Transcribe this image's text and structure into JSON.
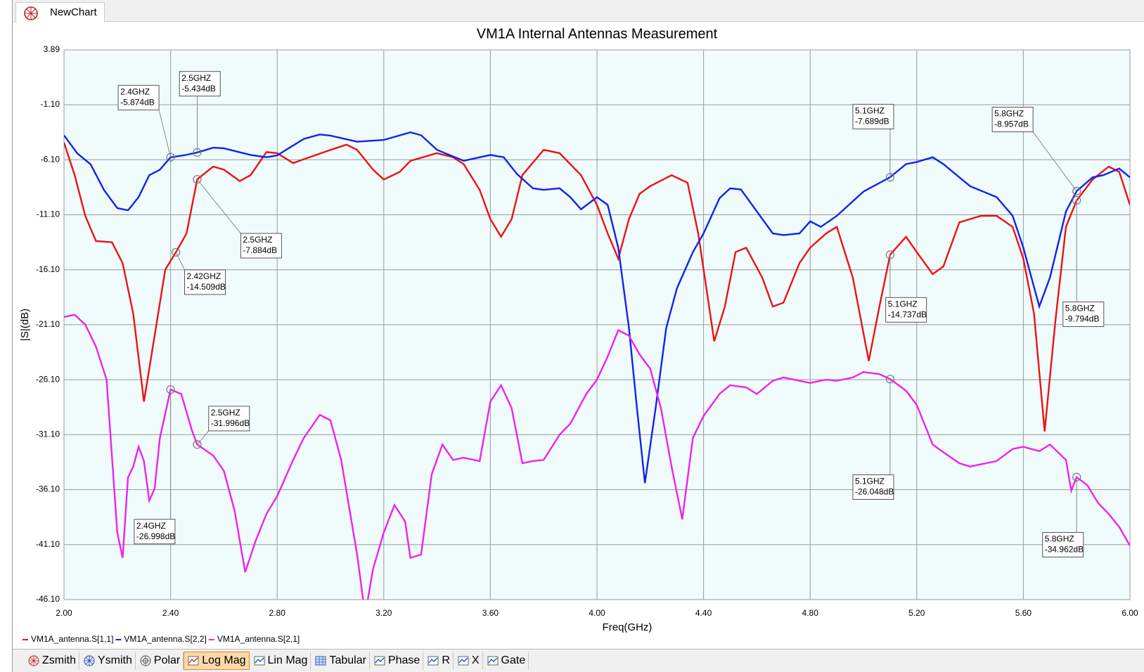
{
  "tab": "NewChart",
  "chart_data": {
    "type": "line",
    "title": "VM1A Internal Antennas Measurement",
    "xlabel": "Freq(GHz)",
    "ylabel": "|S|(dB)",
    "xlim": [
      2,
      6
    ],
    "ylim": [
      -46.1,
      3.89
    ],
    "xticks": [
      {
        "value": 2,
        "label": "2.00"
      },
      {
        "value": 2.4,
        "label": "2.40"
      },
      {
        "value": 2.8,
        "label": "2.80"
      },
      {
        "value": 3.2,
        "label": "3.20"
      },
      {
        "value": 3.6,
        "label": "3.60"
      },
      {
        "value": 4,
        "label": "4.00"
      },
      {
        "value": 4.4,
        "label": "4.40"
      },
      {
        "value": 4.8,
        "label": "4.80"
      },
      {
        "value": 5.2,
        "label": "5.20"
      },
      {
        "value": 5.6,
        "label": "5.60"
      },
      {
        "value": 6,
        "label": "6.00"
      }
    ],
    "yticks": [
      3.89,
      {
        "value": -1.1,
        "label": "-1.10"
      },
      {
        "value": -6.1,
        "label": "-6.10"
      },
      {
        "value": -11.1,
        "label": "-11.10"
      },
      {
        "value": -16.1,
        "label": "-16.10"
      },
      {
        "value": -21.1,
        "label": "-21.10"
      },
      {
        "value": -26.1,
        "label": "-26.10"
      },
      {
        "value": -31.1,
        "label": "-31.10"
      },
      {
        "value": -36.1,
        "label": "-36.10"
      },
      {
        "value": -41.1,
        "label": "-41.10"
      },
      {
        "value": -46.1,
        "label": "-46.10"
      }
    ],
    "grid": true,
    "series": [
      {
        "name": "VM1A_antenna.S[1,1]",
        "color": "#ee1111",
        "x": [
          2.0,
          2.04,
          2.08,
          2.12,
          2.18,
          2.22,
          2.26,
          2.3,
          2.34,
          2.38,
          2.42,
          2.46,
          2.5,
          2.56,
          2.6,
          2.66,
          2.7,
          2.76,
          2.8,
          2.86,
          2.9,
          3.0,
          3.06,
          3.1,
          3.16,
          3.2,
          3.26,
          3.3,
          3.4,
          3.46,
          3.5,
          3.56,
          3.6,
          3.64,
          3.68,
          3.72,
          3.8,
          3.86,
          3.94,
          4.0,
          4.04,
          4.08,
          4.12,
          4.16,
          4.2,
          4.28,
          4.34,
          4.38,
          4.44,
          4.48,
          4.52,
          4.56,
          4.62,
          4.66,
          4.7,
          4.76,
          4.8,
          4.86,
          4.9,
          4.96,
          5.02,
          5.06,
          5.1,
          5.16,
          5.2,
          5.26,
          5.3,
          5.36,
          5.44,
          5.5,
          5.56,
          5.6,
          5.64,
          5.68,
          5.72,
          5.76,
          5.8,
          5.86,
          5.92,
          5.96,
          6.0
        ],
        "values": [
          -4.53,
          -7.5,
          -11.2,
          -13.5,
          -13.6,
          -15.5,
          -20.1,
          -28.1,
          -22.1,
          -16.1,
          -14.509,
          -12.8,
          -7.884,
          -6.72,
          -7.0,
          -8.04,
          -7.5,
          -5.4,
          -5.5,
          -6.4,
          -6.05,
          -5.2,
          -4.73,
          -5.2,
          -7.0,
          -7.9,
          -7.2,
          -6.2,
          -5.5,
          -5.87,
          -6.5,
          -8.84,
          -11.5,
          -13.1,
          -11.5,
          -7.5,
          -5.2,
          -5.5,
          -7.5,
          -10.2,
          -12.8,
          -15.1,
          -11.5,
          -9.2,
          -8.5,
          -7.5,
          -8.2,
          -12.8,
          -22.6,
          -19.45,
          -14.5,
          -14.1,
          -16.8,
          -19.45,
          -19.1,
          -15.5,
          -14.1,
          -12.8,
          -12.2,
          -16.8,
          -24.4,
          -19.45,
          -14.737,
          -13.1,
          -14.5,
          -16.5,
          -15.8,
          -11.8,
          -11.2,
          -11.2,
          -12.2,
          -15.1,
          -20.1,
          -30.8,
          -20.8,
          -12.2,
          -9.794,
          -7.9,
          -6.72,
          -7.2,
          -10.2
        ]
      },
      {
        "name": "VM1A_antenna.S[2,2]",
        "color": "#1122ee",
        "x": [
          2.0,
          2.05,
          2.1,
          2.15,
          2.2,
          2.24,
          2.28,
          2.32,
          2.36,
          2.4,
          2.45,
          2.5,
          2.56,
          2.6,
          2.7,
          2.76,
          2.8,
          2.9,
          2.96,
          3.0,
          3.1,
          3.2,
          3.3,
          3.34,
          3.4,
          3.5,
          3.6,
          3.65,
          3.7,
          3.76,
          3.8,
          3.86,
          3.9,
          3.94,
          4.0,
          4.04,
          4.08,
          4.12,
          4.15,
          4.18,
          4.22,
          4.26,
          4.3,
          4.36,
          4.4,
          4.46,
          4.5,
          4.54,
          4.6,
          4.66,
          4.7,
          4.76,
          4.8,
          4.84,
          4.9,
          5.0,
          5.1,
          5.16,
          5.2,
          5.26,
          5.3,
          5.4,
          5.5,
          5.56,
          5.6,
          5.66,
          5.7,
          5.76,
          5.8,
          5.86,
          5.9,
          5.96,
          6.0
        ],
        "values": [
          -3.87,
          -5.52,
          -6.52,
          -8.84,
          -10.5,
          -10.7,
          -9.5,
          -7.5,
          -7.0,
          -5.874,
          -5.7,
          -5.434,
          -5.0,
          -5.06,
          -5.66,
          -5.87,
          -5.7,
          -4.2,
          -3.8,
          -3.9,
          -4.46,
          -4.3,
          -3.6,
          -3.87,
          -5.2,
          -6.2,
          -5.66,
          -5.87,
          -7.4,
          -8.7,
          -8.84,
          -8.7,
          -9.5,
          -10.6,
          -9.5,
          -10.2,
          -14.1,
          -21.4,
          -28.7,
          -35.5,
          -28.7,
          -21.4,
          -17.8,
          -14.5,
          -12.8,
          -9.6,
          -8.7,
          -8.8,
          -10.8,
          -12.8,
          -12.95,
          -12.8,
          -11.7,
          -12.2,
          -11.2,
          -9.0,
          -7.689,
          -6.5,
          -6.3,
          -5.87,
          -6.5,
          -8.5,
          -9.5,
          -11.2,
          -14.1,
          -19.45,
          -16.8,
          -10.8,
          -8.957,
          -7.7,
          -7.5,
          -6.9,
          -7.7
        ]
      },
      {
        "name": "VM1A_antenna.S[2,1]",
        "color": "#ee22ee",
        "x": [
          2.0,
          2.04,
          2.08,
          2.12,
          2.16,
          2.2,
          2.22,
          2.24,
          2.26,
          2.28,
          2.3,
          2.32,
          2.34,
          2.36,
          2.4,
          2.44,
          2.48,
          2.5,
          2.56,
          2.6,
          2.64,
          2.68,
          2.72,
          2.76,
          2.8,
          2.86,
          2.9,
          2.96,
          3.0,
          3.04,
          3.1,
          3.13,
          3.16,
          3.2,
          3.24,
          3.28,
          3.3,
          3.34,
          3.38,
          3.42,
          3.46,
          3.5,
          3.56,
          3.6,
          3.64,
          3.68,
          3.72,
          3.76,
          3.8,
          3.86,
          3.9,
          3.96,
          4.0,
          4.04,
          4.08,
          4.12,
          4.16,
          4.2,
          4.24,
          4.28,
          4.32,
          4.36,
          4.4,
          4.46,
          4.5,
          4.56,
          4.6,
          4.66,
          4.7,
          4.76,
          4.8,
          4.86,
          4.9,
          4.96,
          5.0,
          5.06,
          5.1,
          5.16,
          5.2,
          5.26,
          5.3,
          5.36,
          5.4,
          5.46,
          5.5,
          5.56,
          5.6,
          5.66,
          5.7,
          5.76,
          5.78,
          5.8,
          5.84,
          5.88,
          5.92,
          5.96,
          6.0
        ],
        "values": [
          -20.4,
          -20.2,
          -21.1,
          -23.1,
          -26.1,
          -40.0,
          -42.3,
          -35.0,
          -34.0,
          -32.2,
          -33.5,
          -37.1,
          -36.0,
          -31.4,
          -26.998,
          -27.4,
          -30.7,
          -31.996,
          -33.0,
          -34.4,
          -38.0,
          -43.6,
          -40.7,
          -38.3,
          -36.7,
          -33.4,
          -31.4,
          -29.3,
          -29.8,
          -33.4,
          -42.0,
          -47.5,
          -43.3,
          -40.0,
          -37.5,
          -39.0,
          -42.3,
          -42.0,
          -34.7,
          -32.0,
          -33.4,
          -33.2,
          -33.5,
          -28.1,
          -26.6,
          -28.7,
          -33.7,
          -33.5,
          -33.4,
          -31.1,
          -30.1,
          -27.4,
          -26.1,
          -24.0,
          -21.6,
          -22.1,
          -23.8,
          -25.1,
          -28.7,
          -34.0,
          -38.8,
          -31.4,
          -29.4,
          -27.4,
          -26.6,
          -26.8,
          -27.4,
          -26.2,
          -25.9,
          -26.2,
          -26.4,
          -26.1,
          -26.2,
          -25.9,
          -25.4,
          -25.6,
          -26.048,
          -27.1,
          -28.4,
          -32.0,
          -32.7,
          -33.7,
          -34.0,
          -33.7,
          -33.5,
          -32.4,
          -32.2,
          -32.6,
          -32.0,
          -33.4,
          -36.2,
          -34.962,
          -35.7,
          -37.3,
          -38.3,
          -39.5,
          -41.2
        ]
      }
    ],
    "annotations": [
      {
        "x": 2.4,
        "value": -5.874,
        "label_lines": [
          "2.4GHZ",
          "-5.874dB"
        ]
      },
      {
        "x": 2.5,
        "value": -5.434,
        "label_lines": [
          "2.5GHZ",
          "-5.434dB"
        ]
      },
      {
        "x": 2.5,
        "value": -7.884,
        "label_lines": [
          "2.5GHZ",
          "-7.884dB"
        ]
      },
      {
        "x": 2.42,
        "value": -14.509,
        "label_lines": [
          "2.42GHZ",
          "-14.509dB"
        ]
      },
      {
        "x": 2.4,
        "value": -26.998,
        "label_lines": [
          "2.4GHZ",
          "-26.998dB"
        ]
      },
      {
        "x": 2.5,
        "value": -31.996,
        "label_lines": [
          "2.5GHZ",
          "-31.996dB"
        ]
      },
      {
        "x": 5.1,
        "value": -7.689,
        "label_lines": [
          "5.1GHZ",
          "-7.689dB"
        ]
      },
      {
        "x": 5.1,
        "value": -14.737,
        "label_lines": [
          "5.1GHZ",
          "-14.737dB"
        ]
      },
      {
        "x": 5.1,
        "value": -26.048,
        "label_lines": [
          "5.1GHZ",
          "-26.048dB"
        ]
      },
      {
        "x": 5.8,
        "value": -8.957,
        "label_lines": [
          "5.8GHZ",
          "-8.957dB"
        ]
      },
      {
        "x": 5.8,
        "value": -9.794,
        "label_lines": [
          "5.8GHZ",
          "-9.794dB"
        ]
      },
      {
        "x": 5.8,
        "value": -34.962,
        "label_lines": [
          "5.8GHZ",
          "-34.962dB"
        ]
      }
    ]
  },
  "toolbar": [
    "Zsmith",
    "Ysmith",
    "Polar",
    "Log Mag",
    "Lin Mag",
    "Tabular",
    "Phase",
    "R",
    "X",
    "Gate"
  ]
}
